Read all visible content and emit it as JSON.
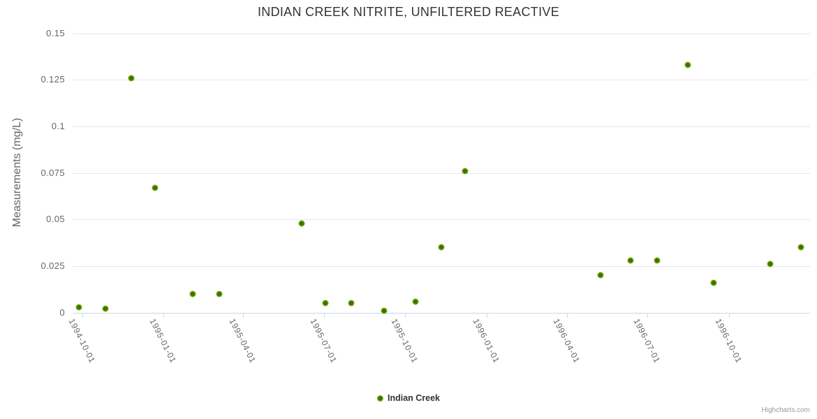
{
  "title": "INDIAN CREEK NITRITE, UNFILTERED REACTIVE",
  "credits": "Highcharts.com",
  "colors": {
    "marker_outer": "#7ab509",
    "marker_inner": "#3c6e05",
    "gridline": "#e6e6e6",
    "axis_line": "#ccd6eb",
    "axis_label": "#666666",
    "title_text": "#333333",
    "credits_text": "#999999",
    "background": "#ffffff"
  },
  "chart_data": {
    "type": "scatter",
    "title": "INDIAN CREEK NITRITE, UNFILTERED REACTIVE",
    "xlabel": "",
    "ylabel": "Measurements (mg/L)",
    "ylim": [
      0,
      0.15
    ],
    "xlim": [
      "1994-09-20",
      "1997-01-01"
    ],
    "grid": "horizontal-only",
    "legend_position": "bottom-center",
    "y_ticks": [
      {
        "value": 0,
        "label": "0"
      },
      {
        "value": 0.025,
        "label": "0.025"
      },
      {
        "value": 0.05,
        "label": "0.05"
      },
      {
        "value": 0.075,
        "label": "0.075"
      },
      {
        "value": 0.1,
        "label": "0.1"
      },
      {
        "value": 0.125,
        "label": "0.125"
      },
      {
        "value": 0.15,
        "label": "0.15"
      }
    ],
    "x_ticks": [
      {
        "date": "1994-10-01",
        "label": "1994-10-01"
      },
      {
        "date": "1995-01-01",
        "label": "1995-01-01"
      },
      {
        "date": "1995-04-01",
        "label": "1995-04-01"
      },
      {
        "date": "1995-07-01",
        "label": "1995-07-01"
      },
      {
        "date": "1995-10-01",
        "label": "1995-10-01"
      },
      {
        "date": "1996-01-01",
        "label": "1996-01-01"
      },
      {
        "date": "1996-04-01",
        "label": "1996-04-01"
      },
      {
        "date": "1996-07-01",
        "label": "1996-07-01"
      },
      {
        "date": "1996-10-01",
        "label": "1996-10-01"
      }
    ],
    "series": [
      {
        "name": "Indian Creek",
        "color": "#7ab509",
        "points": [
          {
            "date": "1994-09-27",
            "value": 0.003
          },
          {
            "date": "1994-10-27",
            "value": 0.002
          },
          {
            "date": "1994-11-25",
            "value": 0.126
          },
          {
            "date": "1994-12-22",
            "value": 0.067
          },
          {
            "date": "1995-02-03",
            "value": 0.01
          },
          {
            "date": "1995-03-05",
            "value": 0.01
          },
          {
            "date": "1995-06-06",
            "value": 0.048
          },
          {
            "date": "1995-07-03",
            "value": 0.005
          },
          {
            "date": "1995-08-01",
            "value": 0.005
          },
          {
            "date": "1995-09-07",
            "value": 0.001
          },
          {
            "date": "1995-10-13",
            "value": 0.006
          },
          {
            "date": "1995-11-11",
            "value": 0.035
          },
          {
            "date": "1995-12-08",
            "value": 0.076
          },
          {
            "date": "1996-05-09",
            "value": 0.02
          },
          {
            "date": "1996-06-12",
            "value": 0.028
          },
          {
            "date": "1996-07-12",
            "value": 0.028
          },
          {
            "date": "1996-08-16",
            "value": 0.133
          },
          {
            "date": "1996-09-14",
            "value": 0.016
          },
          {
            "date": "1996-11-17",
            "value": 0.026
          },
          {
            "date": "1996-12-22",
            "value": 0.035
          }
        ]
      }
    ]
  }
}
